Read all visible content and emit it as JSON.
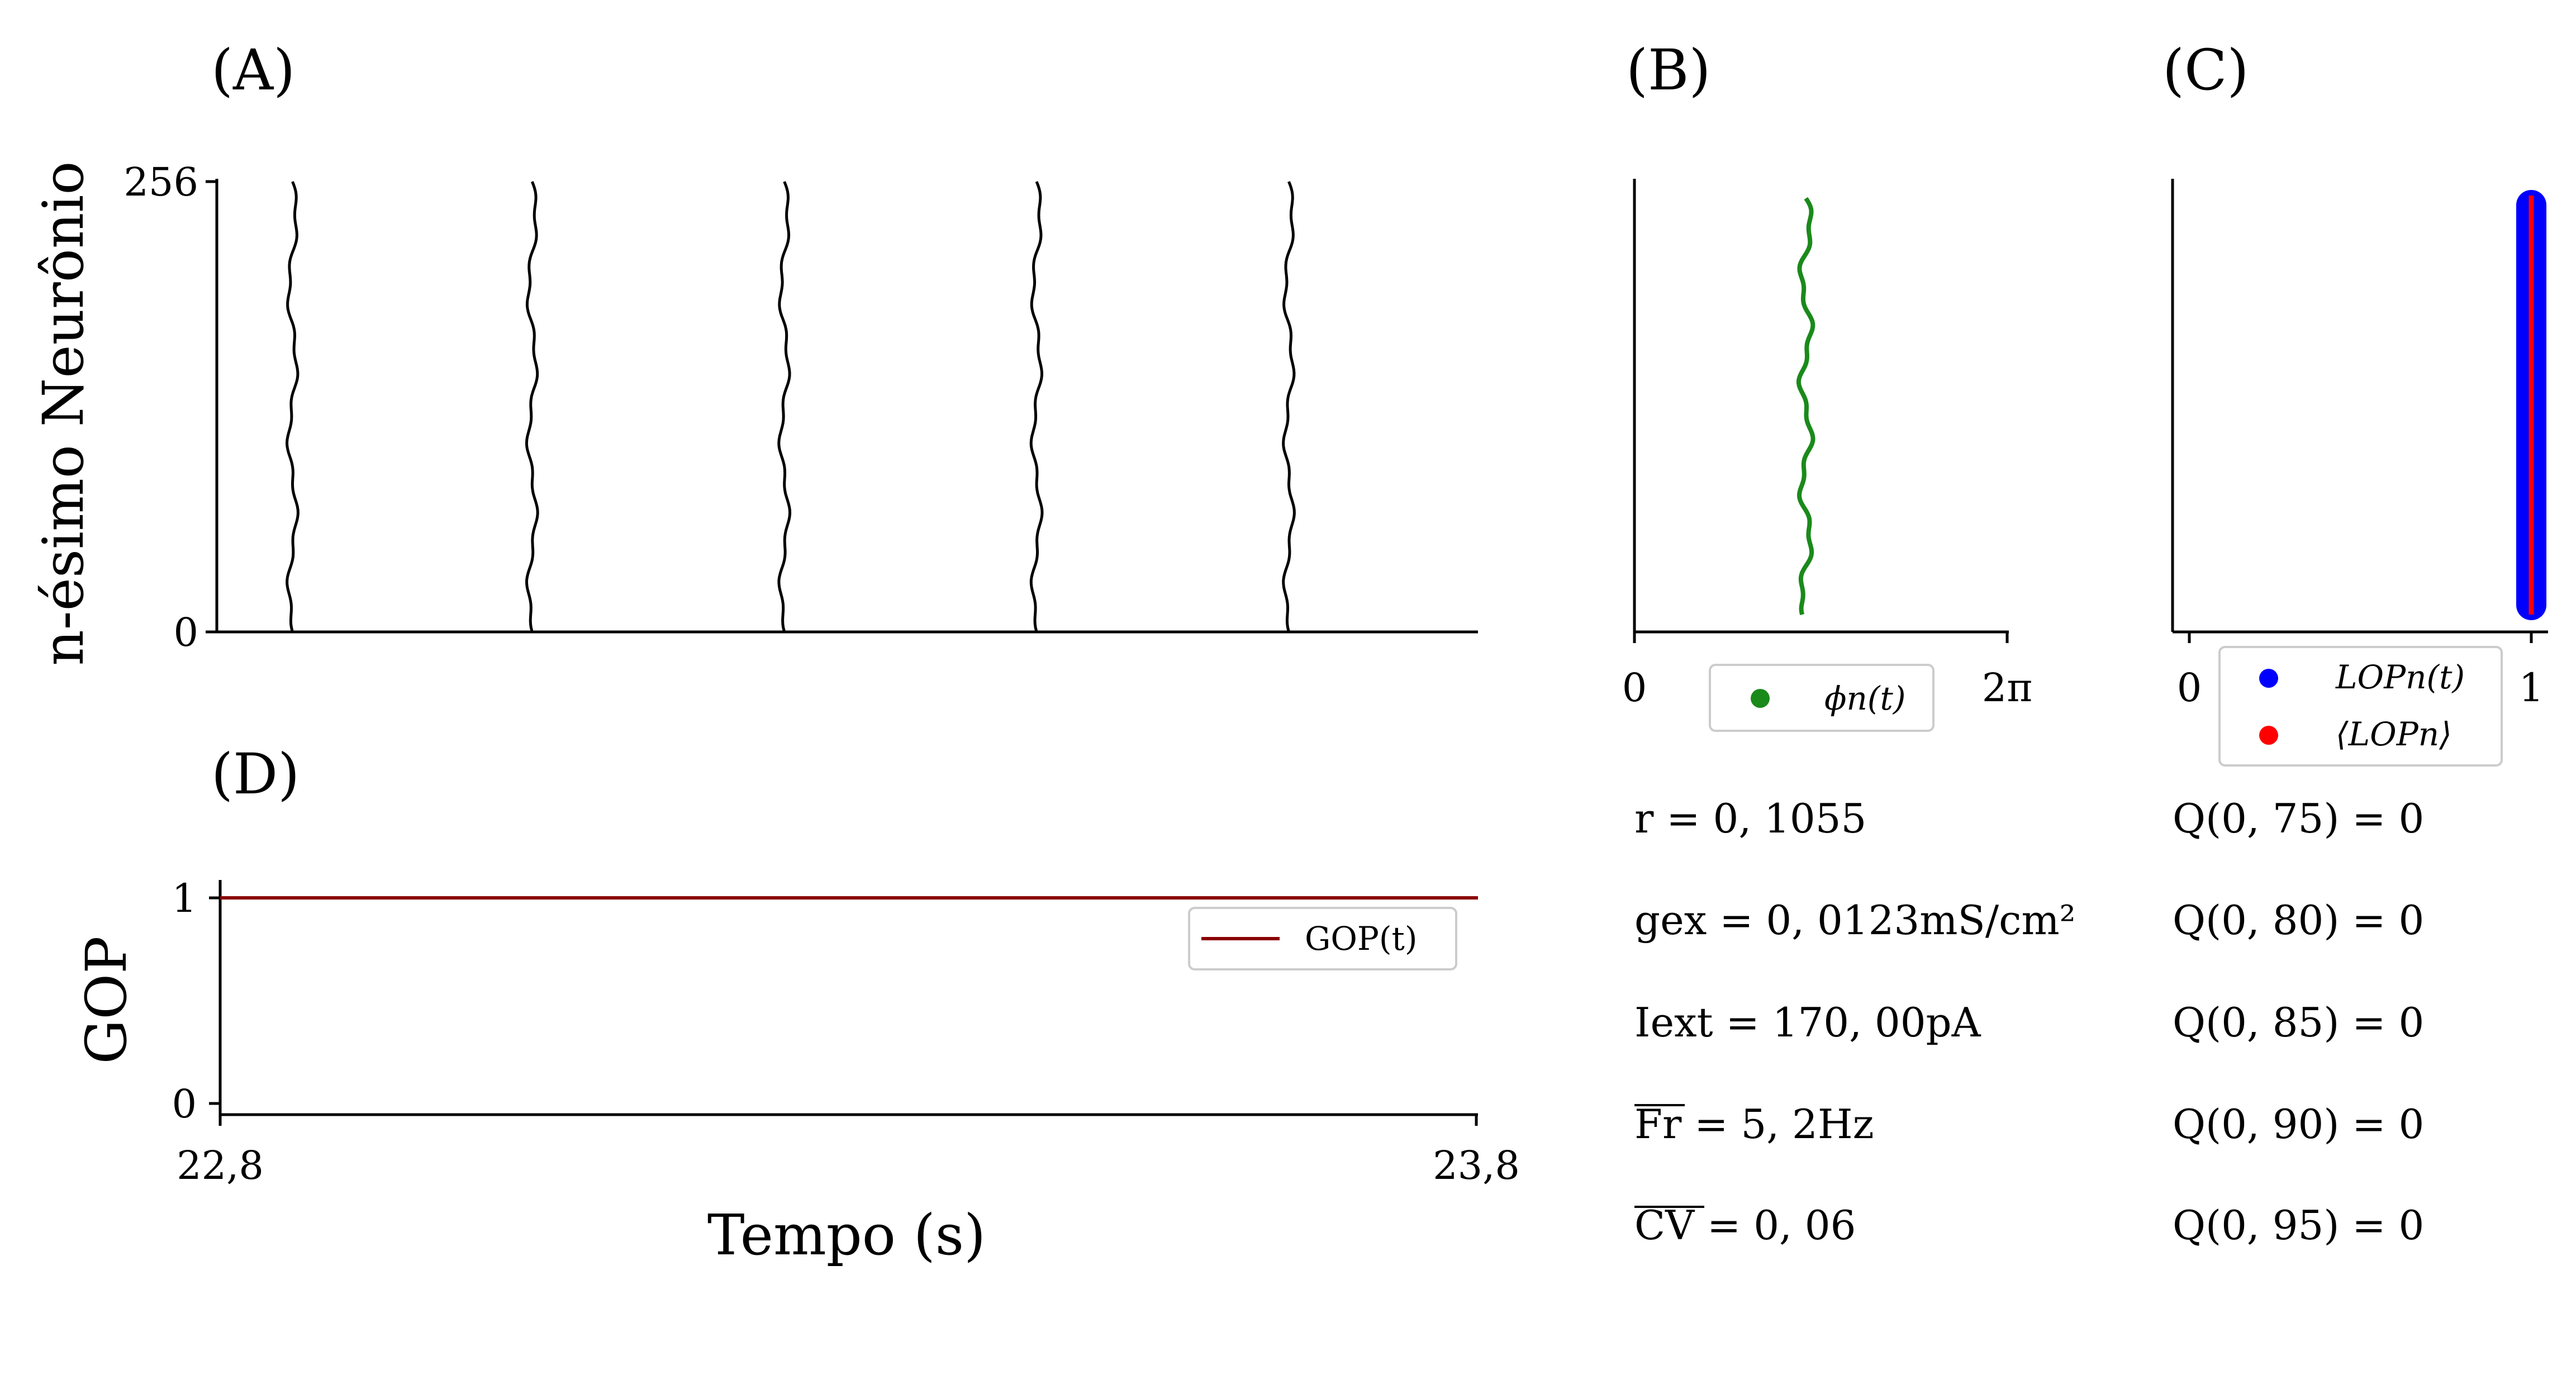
{
  "panels": {
    "A": {
      "label": "(A)"
    },
    "B": {
      "label": "(B)"
    },
    "C": {
      "label": "(C)"
    },
    "D": {
      "label": "(D)"
    }
  },
  "raster": {
    "ylabel": "n-ésimo Neurônio",
    "ytick_min": "0",
    "ytick_max": "256"
  },
  "phase": {
    "xtick_min": "0",
    "xtick_max": "2π",
    "legend": "ϕn(t)",
    "color": "#1a8a1a"
  },
  "lop": {
    "xtick_min": "0",
    "xtick_max": "1",
    "legend_lop": "LOPn(t)",
    "legend_mean": "⟨LOPn⟩",
    "color_lop": "#0000ff",
    "color_mean": "#ff0000"
  },
  "gop": {
    "ylabel": "GOP",
    "xlabel": "Tempo (s)",
    "ytick_0": "0",
    "ytick_1": "1",
    "xtick_min": "22,8",
    "xtick_max": "23,8",
    "legend": "GOP(t)",
    "color": "#8b0000"
  },
  "params_left": [
    "r = 0, 1055",
    "gex = 0, 0123mS/cm²",
    "Iext = 170, 00pA",
    "Fr = 5, 2Hz",
    "CV = 0, 06"
  ],
  "params_right": [
    "Q(0, 75) = 0",
    "Q(0, 80) = 0",
    "Q(0, 85) = 0",
    "Q(0, 90) = 0",
    "Q(0, 95) = 0"
  ],
  "chart_data": [
    {
      "type": "scatter",
      "panel": "A",
      "description_series": "spike raster",
      "x_unit": "s",
      "burst_times": [
        22.86,
        23.05,
        23.25,
        23.45,
        23.65
      ],
      "ylim": [
        0,
        256
      ],
      "xlim": [
        22.8,
        23.8
      ]
    },
    {
      "type": "scatter",
      "panel": "B",
      "series": [
        {
          "name": "ϕn(t)",
          "x_fraction_of_2pi": 0.46
        }
      ],
      "xlim": [
        "0",
        "2π"
      ]
    },
    {
      "type": "scatter",
      "panel": "C",
      "series": [
        {
          "name": "LOPn(t)",
          "x": 1.0
        },
        {
          "name": "⟨LOPn⟩",
          "x": 1.0
        }
      ],
      "xlim": [
        0,
        1
      ]
    },
    {
      "type": "line",
      "panel": "D",
      "series": [
        {
          "name": "GOP(t)",
          "x": [
            22.8,
            23.8
          ],
          "y": [
            1,
            1
          ]
        }
      ],
      "xlim": [
        22.8,
        23.8
      ],
      "ylim": [
        0,
        1
      ]
    }
  ]
}
